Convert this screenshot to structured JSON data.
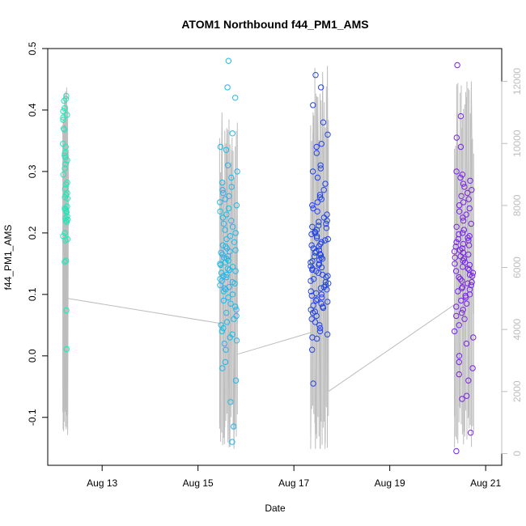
{
  "chart_data": {
    "type": "scatter",
    "title": "ATOM1 Northbound f44_PM1_AMS",
    "xlabel": "Date",
    "ylabel": "f44_PM1_AMS",
    "x_ticks": [
      {
        "day": 13,
        "label": "Aug 13"
      },
      {
        "day": 15,
        "label": "Aug 15"
      },
      {
        "day": 17,
        "label": "Aug 17"
      },
      {
        "day": 19,
        "label": "Aug 19"
      },
      {
        "day": 21,
        "label": "Aug 21"
      }
    ],
    "xlim": [
      11.95,
      21.2
    ],
    "ylim": [
      -0.178,
      0.5
    ],
    "y_ticks": [
      -0.1,
      0.0,
      0.1,
      0.2,
      0.3,
      0.4,
      0.5
    ],
    "y_tick_labels": [
      "-0.1",
      "0.0",
      "0.1",
      "0.2",
      "0.3",
      "0.4",
      "0.5"
    ],
    "y2lim": [
      -380,
      13060
    ],
    "y2_ticks": [
      0,
      2000,
      4000,
      6000,
      8000,
      10000,
      12000
    ],
    "y2_tick_labels": [
      "0",
      "2000",
      "4000",
      "6000",
      "8000",
      "10000",
      "12000"
    ],
    "colors": {
      "cluster1": "#22e6b8",
      "cluster2": "#20b8ea",
      "cluster3": "#2244e6",
      "cluster4": "#7a22ea",
      "secondary": "#bdbdbd"
    },
    "clusters": [
      {
        "name": "Aug 12",
        "color_key": "cluster1",
        "day_range": [
          12.18,
          12.28
        ],
        "values": [
          0.423,
          0.418,
          0.415,
          0.403,
          0.398,
          0.392,
          0.388,
          0.384,
          0.37,
          0.368,
          0.345,
          0.34,
          0.33,
          0.326,
          0.323,
          0.318,
          0.312,
          0.305,
          0.295,
          0.282,
          0.279,
          0.272,
          0.265,
          0.262,
          0.258,
          0.256,
          0.243,
          0.24,
          0.238,
          0.236,
          0.234,
          0.227,
          0.224,
          0.222,
          0.22,
          0.218,
          0.2,
          0.195,
          0.19,
          0.188,
          0.155,
          0.153,
          0.074,
          0.011
        ],
        "line_x": [
          12.18,
          12.21,
          12.23,
          12.26,
          12.28,
          12.3
        ],
        "line_y": [
          2200,
          10200,
          1500,
          11800,
          600,
          9800
        ],
        "end_level": 5000
      },
      {
        "name": "Aug 15",
        "color_key": "cluster2",
        "day_range": [
          15.45,
          15.82
        ],
        "values": [
          0.48,
          0.437,
          0.42,
          0.362,
          0.34,
          0.335,
          0.31,
          0.3,
          0.29,
          0.282,
          0.275,
          0.27,
          0.265,
          0.26,
          0.255,
          0.25,
          0.245,
          0.24,
          0.235,
          0.23,
          0.225,
          0.22,
          0.215,
          0.21,
          0.205,
          0.2,
          0.195,
          0.19,
          0.185,
          0.18,
          0.178,
          0.175,
          0.172,
          0.17,
          0.168,
          0.165,
          0.162,
          0.16,
          0.158,
          0.155,
          0.152,
          0.15,
          0.148,
          0.145,
          0.142,
          0.14,
          0.138,
          0.135,
          0.132,
          0.13,
          0.128,
          0.125,
          0.122,
          0.12,
          0.118,
          0.115,
          0.112,
          0.11,
          0.108,
          0.105,
          0.1,
          0.095,
          0.09,
          0.085,
          0.08,
          0.075,
          0.07,
          0.065,
          0.06,
          0.055,
          0.05,
          0.045,
          0.04,
          0.035,
          0.03,
          0.025,
          0.02,
          0.01,
          -0.01,
          -0.02,
          -0.04,
          -0.075,
          -0.115,
          -0.14
        ],
        "line_x": [
          15.45,
          15.5,
          15.55,
          15.6,
          15.65,
          15.7,
          15.75,
          15.8,
          15.82
        ],
        "line_y": [
          800,
          11000,
          300,
          10500,
          200,
          9800,
          150,
          8000,
          4200
        ],
        "end_level": 3200
      },
      {
        "name": "Aug 17",
        "color_key": "cluster3",
        "day_range": [
          17.35,
          17.72
        ],
        "values": [
          0.457,
          0.437,
          0.408,
          0.38,
          0.36,
          0.345,
          0.34,
          0.33,
          0.31,
          0.305,
          0.3,
          0.29,
          0.28,
          0.27,
          0.262,
          0.258,
          0.255,
          0.25,
          0.245,
          0.24,
          0.235,
          0.23,
          0.225,
          0.22,
          0.218,
          0.215,
          0.212,
          0.21,
          0.208,
          0.205,
          0.202,
          0.2,
          0.198,
          0.195,
          0.192,
          0.19,
          0.188,
          0.185,
          0.182,
          0.18,
          0.178,
          0.175,
          0.172,
          0.17,
          0.168,
          0.166,
          0.164,
          0.162,
          0.16,
          0.158,
          0.156,
          0.154,
          0.152,
          0.15,
          0.148,
          0.146,
          0.144,
          0.142,
          0.14,
          0.138,
          0.135,
          0.132,
          0.13,
          0.128,
          0.125,
          0.122,
          0.12,
          0.118,
          0.115,
          0.112,
          0.11,
          0.108,
          0.105,
          0.102,
          0.1,
          0.098,
          0.095,
          0.092,
          0.09,
          0.088,
          0.085,
          0.082,
          0.08,
          0.078,
          0.075,
          0.072,
          0.07,
          0.065,
          0.06,
          0.055,
          0.05,
          0.045,
          0.04,
          0.035,
          0.03,
          0.028,
          0.01,
          -0.045
        ],
        "line_x": [
          17.35,
          17.4,
          17.45,
          17.5,
          17.55,
          17.6,
          17.65,
          17.7,
          17.72
        ],
        "line_y": [
          150,
          11000,
          150,
          11500,
          150,
          12300,
          150,
          12500,
          2000
        ],
        "end_level": 4000
      },
      {
        "name": "Aug 20",
        "color_key": "cluster4",
        "day_range": [
          20.35,
          20.75
        ],
        "values": [
          0.473,
          0.39,
          0.355,
          0.34,
          0.3,
          0.295,
          0.29,
          0.285,
          0.28,
          0.275,
          0.27,
          0.265,
          0.26,
          0.255,
          0.25,
          0.245,
          0.24,
          0.235,
          0.23,
          0.225,
          0.22,
          0.215,
          0.21,
          0.205,
          0.2,
          0.198,
          0.195,
          0.192,
          0.19,
          0.188,
          0.185,
          0.182,
          0.18,
          0.178,
          0.175,
          0.172,
          0.17,
          0.168,
          0.165,
          0.162,
          0.16,
          0.158,
          0.155,
          0.152,
          0.15,
          0.148,
          0.145,
          0.142,
          0.14,
          0.138,
          0.135,
          0.132,
          0.13,
          0.128,
          0.125,
          0.122,
          0.12,
          0.118,
          0.115,
          0.112,
          0.11,
          0.108,
          0.105,
          0.1,
          0.098,
          0.095,
          0.09,
          0.085,
          0.08,
          0.075,
          0.07,
          0.065,
          0.06,
          0.05,
          0.04,
          0.03,
          0.02,
          0.0,
          -0.01,
          -0.02,
          -0.03,
          -0.04,
          -0.065,
          -0.07,
          -0.125,
          -0.155
        ],
        "line_x": [
          20.35,
          20.4,
          20.45,
          20.5,
          20.55,
          20.6,
          20.65,
          20.7,
          20.75
        ],
        "line_y": [
          200,
          11000,
          1500,
          10500,
          700,
          11500,
          1200,
          12000,
          4500
        ],
        "end_level": 5200
      }
    ],
    "connectors": [
      {
        "from_day": 12.28,
        "from": 5000,
        "to_day": 15.45,
        "to": 4200
      },
      {
        "from_day": 15.82,
        "from": 3200,
        "to_day": 17.35,
        "to": 3900
      },
      {
        "from_day": 17.72,
        "from": 2000,
        "to_day": 20.35,
        "to": 4800
      }
    ]
  }
}
